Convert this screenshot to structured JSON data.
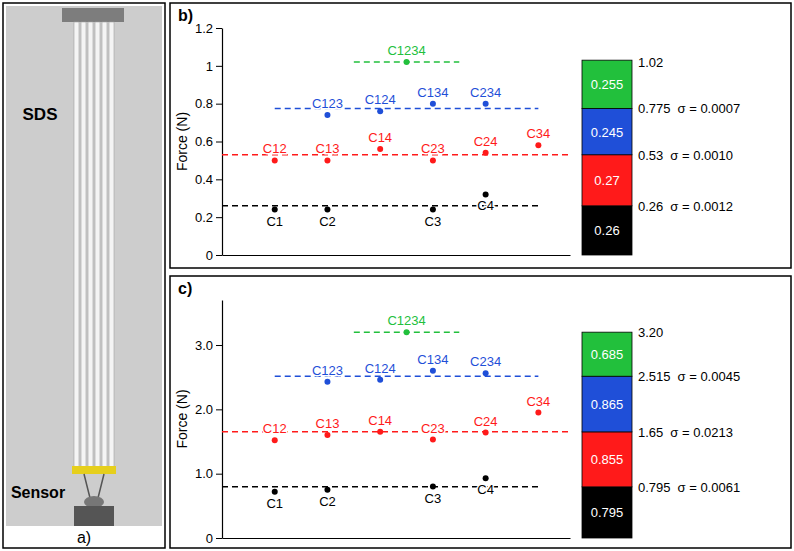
{
  "photo": {
    "label": "a)",
    "texts": [
      "SDS",
      "Sensor"
    ]
  },
  "chart_data": [
    {
      "type": "scatter",
      "panel_label": "b)",
      "y_label": "Force (N)",
      "xlim": [
        0,
        6.6
      ],
      "ylim": [
        0,
        1.2
      ],
      "yticks": [
        0,
        0.2,
        0.4,
        0.6,
        0.8,
        1,
        1.2
      ],
      "tick_labels": "y",
      "stacked": true,
      "data_labels": true,
      "series": [
        {
          "color": "#000000",
          "marker": "circle",
          "line_style": "dashed",
          "labels": [
            "C1",
            "C2",
            "C3",
            "C4"
          ],
          "x": [
            1,
            2,
            4,
            5
          ],
          "values": [
            0.24,
            0.24,
            0.24,
            0.32
          ],
          "mean": 0.26,
          "sigma_label": "σ = 0.0012",
          "segment": 0.26
        },
        {
          "color": "#ff1a1a",
          "marker": "circle",
          "line_style": "dashed",
          "labels": [
            "C12",
            "C13",
            "C14",
            "C23",
            "C24",
            "C34"
          ],
          "x": [
            1,
            2,
            3,
            4,
            5,
            6
          ],
          "values": [
            0.5,
            0.5,
            0.56,
            0.5,
            0.54,
            0.58
          ],
          "mean": 0.53,
          "sigma_label": "σ = 0.0010",
          "segment": 0.27
        },
        {
          "color": "#1f4fd8",
          "marker": "circle",
          "line_style": "dashed",
          "labels": [
            "C123",
            "C124",
            "C134",
            "C234"
          ],
          "x": [
            2,
            3,
            4,
            5
          ],
          "values": [
            0.74,
            0.76,
            0.8,
            0.8
          ],
          "mean": 0.775,
          "sigma_label": "σ = 0.0007",
          "segment": 0.245
        },
        {
          "color": "#22c03c",
          "marker": "circle",
          "line_style": "dashed",
          "labels": [
            "C1234"
          ],
          "x": [
            3.5
          ],
          "values": [
            1.02
          ],
          "mean": 1.02,
          "segment": 0.255
        }
      ]
    },
    {
      "type": "scatter",
      "panel_label": "c)",
      "y_label": "Force (N)",
      "xlim": [
        0,
        6.6
      ],
      "ylim": [
        0,
        3.7
      ],
      "yticks": [
        0,
        {
          "value": 1,
          "label": "1.0"
        },
        {
          "value": 2,
          "label": "2.0"
        },
        {
          "value": 3,
          "label": "3.0"
        }
      ],
      "tick_labels": "y",
      "stacked": true,
      "data_labels": true,
      "series": [
        {
          "color": "#000000",
          "marker": "circle",
          "line_style": "dashed",
          "labels": [
            "C1",
            "C2",
            "C3",
            "C4"
          ],
          "x": [
            1,
            2,
            4,
            5
          ],
          "values": [
            0.72,
            0.75,
            0.8,
            0.93
          ],
          "mean": 0.795,
          "sigma_label": "σ = 0.0061",
          "segment": 0.795
        },
        {
          "color": "#ff1a1a",
          "marker": "circle",
          "line_style": "dashed",
          "labels": [
            "C12",
            "C13",
            "C14",
            "C23",
            "C24",
            "C34"
          ],
          "x": [
            1,
            2,
            3,
            4,
            5,
            6
          ],
          "values": [
            1.52,
            1.6,
            1.65,
            1.53,
            1.64,
            1.95
          ],
          "mean": 1.65,
          "sigma_label": "σ = 0.0213",
          "segment": 0.855
        },
        {
          "color": "#1f4fd8",
          "marker": "circle",
          "line_style": "dashed",
          "labels": [
            "C123",
            "C124",
            "C134",
            "C234"
          ],
          "x": [
            2,
            3,
            4,
            5
          ],
          "values": [
            2.43,
            2.46,
            2.6,
            2.56
          ],
          "mean": 2.515,
          "sigma_label": "σ = 0.0045",
          "segment": 0.865
        },
        {
          "color": "#22c03c",
          "marker": "circle",
          "line_style": "dashed",
          "labels": [
            "C1234"
          ],
          "x": [
            3.5
          ],
          "values": [
            3.2
          ],
          "mean": 3.2,
          "mean_label": "3.20",
          "segment": 0.685
        }
      ]
    }
  ]
}
